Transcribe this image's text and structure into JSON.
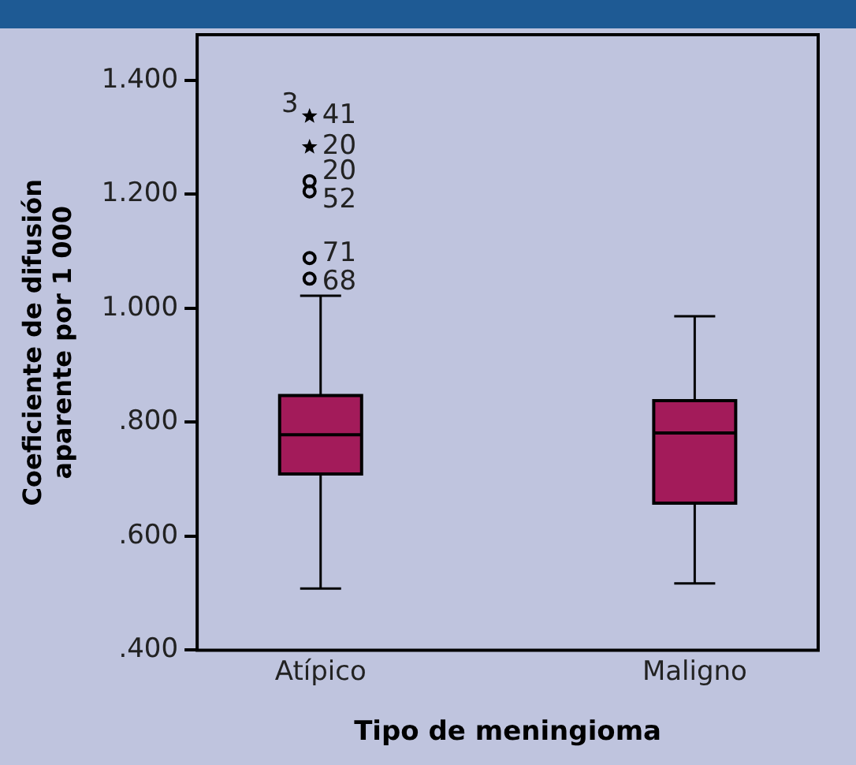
{
  "chart_data": {
    "type": "box",
    "xlabel": "Tipo de meningioma",
    "ylabel": "Coeficiente de difusión\naparente por 1 000",
    "categories": [
      "Atípico",
      "Maligno"
    ],
    "color": "#a31b5a",
    "boxes": [
      {
        "low": 0.508,
        "q1": 0.709,
        "median": 0.778,
        "q3": 0.847,
        "high": 1.022
      },
      {
        "low": 0.517,
        "q1": 0.658,
        "median": 0.781,
        "q3": 0.838,
        "high": 0.986
      }
    ],
    "series": [
      {
        "type": "scatter",
        "marker": "star",
        "color": "#000000",
        "x": [
          "Atípico",
          "Atípico"
        ],
        "values": [
          1.337,
          1.283
        ]
      },
      {
        "type": "scatter",
        "marker": "circle",
        "color": "#000000",
        "x": [
          "Atípico",
          "Atípico",
          "Atípico",
          "Atípico"
        ],
        "values": [
          1.223,
          1.205,
          1.088,
          1.052
        ]
      }
    ],
    "ylim": [
      0.4,
      1.48
    ],
    "yticks": [
      {
        "value": 0.4,
        "label": ".400"
      },
      {
        "value": 0.6,
        "label": ".600"
      },
      {
        "value": 0.8,
        "label": ".800"
      },
      {
        "value": 1.0,
        "label": "1.000"
      },
      {
        "value": 1.2,
        "label": "1.200"
      },
      {
        "value": 1.4,
        "label": "1.400"
      }
    ],
    "grid": false,
    "legend": false,
    "annotations": [
      {
        "text": "3",
        "x": "Atípico",
        "y": 1.337
      },
      {
        "text": "41",
        "x": "Atípico",
        "y": 1.337
      },
      {
        "text": "20",
        "x": "Atípico",
        "y": 1.283
      },
      {
        "text": "20",
        "x": "Atípico",
        "y": 1.223
      },
      {
        "text": "52",
        "x": "Atípico",
        "y": 1.205
      },
      {
        "text": "71",
        "x": "Atípico",
        "y": 1.088
      },
      {
        "text": "68",
        "x": "Atípico",
        "y": 1.052
      }
    ]
  }
}
